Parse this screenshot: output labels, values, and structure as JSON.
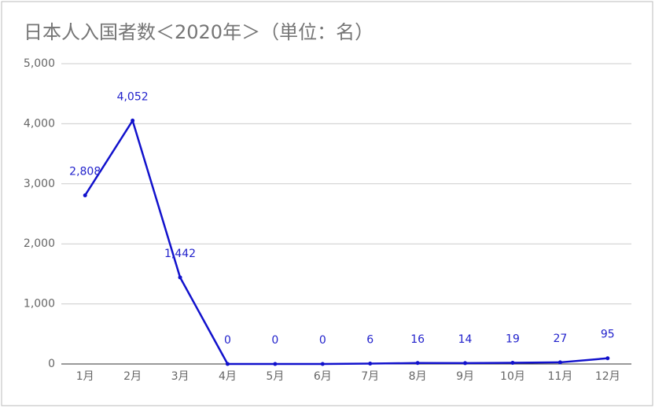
{
  "chart_data": {
    "type": "line",
    "title": "日本人入国者数＜2020年＞（単位：名）",
    "categories": [
      "1月",
      "2月",
      "3月",
      "4月",
      "5月",
      "6月",
      "7月",
      "8月",
      "9月",
      "10月",
      "11月",
      "12月"
    ],
    "series": [
      {
        "color": "#1111cc",
        "values": [
          2808,
          4052,
          1442,
          0,
          0,
          0,
          6,
          16,
          14,
          19,
          27,
          95
        ],
        "value_labels": [
          "2,808",
          "4,052",
          "1,442",
          "0",
          "0",
          "0",
          "6",
          "16",
          "14",
          "19",
          "27",
          "95"
        ]
      }
    ],
    "ylim": [
      0,
      5000
    ],
    "yticks": [
      0,
      {
        "value": 1000,
        "label": "1,000"
      },
      {
        "value": 2000,
        "label": "2,000"
      },
      {
        "value": 3000,
        "label": "3,000"
      },
      {
        "value": 4000,
        "label": "4,000"
      },
      {
        "value": 5000,
        "label": "5,000"
      }
    ],
    "grid": true
  }
}
